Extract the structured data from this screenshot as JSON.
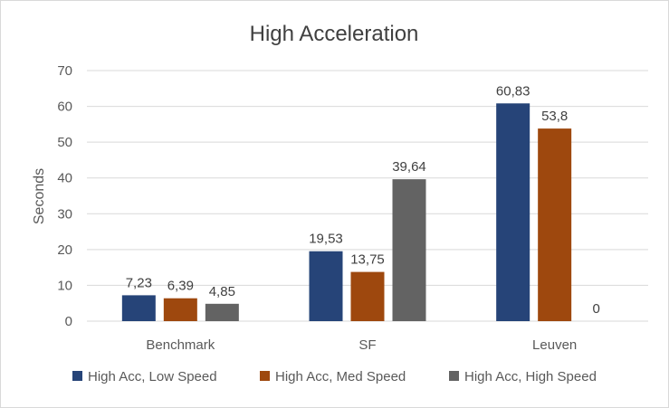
{
  "chart_data": {
    "type": "bar",
    "title": "High Acceleration",
    "xlabel": "",
    "ylabel": "Seconds",
    "ylim": [
      0,
      70
    ],
    "yticks": [
      0,
      10,
      20,
      30,
      40,
      50,
      60,
      70
    ],
    "grid": true,
    "legend_position": "bottom",
    "categories": [
      "Benchmark",
      "SF",
      "Leuven"
    ],
    "series": [
      {
        "name": "High Acc, Low Speed",
        "color": "#264478",
        "values": [
          7.23,
          19.53,
          60.83
        ],
        "labels": [
          "7,23",
          "19,53",
          "60,83"
        ]
      },
      {
        "name": "High Acc, Med Speed",
        "color": "#9e480e",
        "values": [
          6.39,
          13.75,
          53.8
        ],
        "labels": [
          "6,39",
          "13,75",
          "53,8"
        ]
      },
      {
        "name": "High Acc, High Speed",
        "color": "#636363",
        "values": [
          4.85,
          39.64,
          0
        ],
        "labels": [
          "4,85",
          "39,64",
          "0"
        ]
      }
    ]
  }
}
